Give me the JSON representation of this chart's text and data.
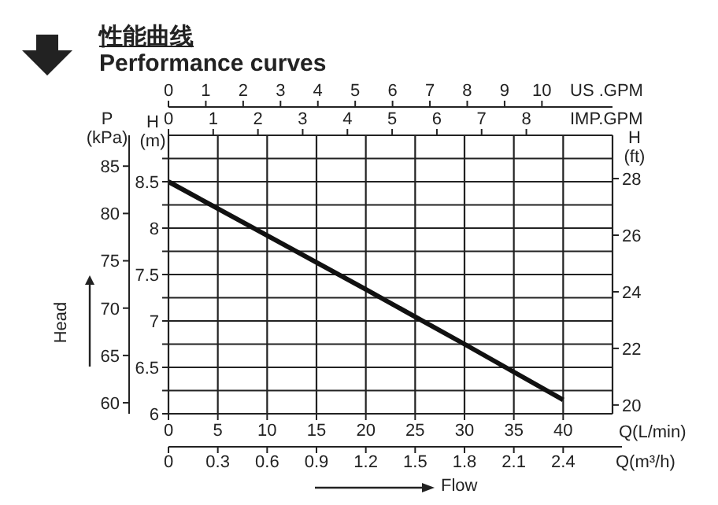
{
  "chart_data": {
    "type": "line",
    "title": "性能曲线",
    "subtitle": "Performance curves",
    "x": [
      0,
      10,
      20,
      30,
      40
    ],
    "series": [
      {
        "color": "#111111",
        "values": [
          8.5,
          7.92,
          7.34,
          6.75,
          6.15
        ]
      }
    ],
    "xlabel": "Q(L/min)",
    "xlim": [
      0,
      45
    ],
    "xticks": [
      0,
      5,
      10,
      15,
      20,
      25,
      30,
      35,
      40
    ],
    "x2label": "US .GPM",
    "x2lim": [
      0,
      11.89
    ],
    "x2ticks": [
      0,
      1,
      2,
      3,
      4,
      5,
      6,
      7,
      8,
      9,
      10
    ],
    "ylabel": "H (m)",
    "ylim": [
      6,
      9
    ],
    "yticks": [
      6,
      {
        "value": 6.25,
        "label": null
      },
      6.5,
      {
        "value": 6.75,
        "label": null
      },
      7,
      {
        "value": 7.25,
        "label": null
      },
      7.5,
      {
        "value": 7.75,
        "label": null
      },
      8,
      {
        "value": 8.25,
        "label": null
      },
      8.5,
      {
        "value": 8.75,
        "label": null
      }
    ],
    "y2label": "H (ft)",
    "y2lim": [
      19.69,
      29.53
    ],
    "y2ticks": [
      20,
      22,
      24,
      26,
      28
    ],
    "y3label": "P (kPa)",
    "y3lim": [
      58.84,
      88.26
    ],
    "y3ticks": [
      60,
      65,
      70,
      75,
      80,
      85
    ],
    "annotations": [
      "Head",
      "Flow",
      "IMP.GPM",
      "0",
      "1",
      "2",
      "3",
      "4",
      "5",
      "6",
      "7",
      "8",
      "Q(m³/h)",
      "0",
      "0.3",
      "0.6",
      "0.9",
      "1.2",
      "1.5",
      "1.8",
      "2.1",
      "2.4"
    ],
    "grid": true
  }
}
